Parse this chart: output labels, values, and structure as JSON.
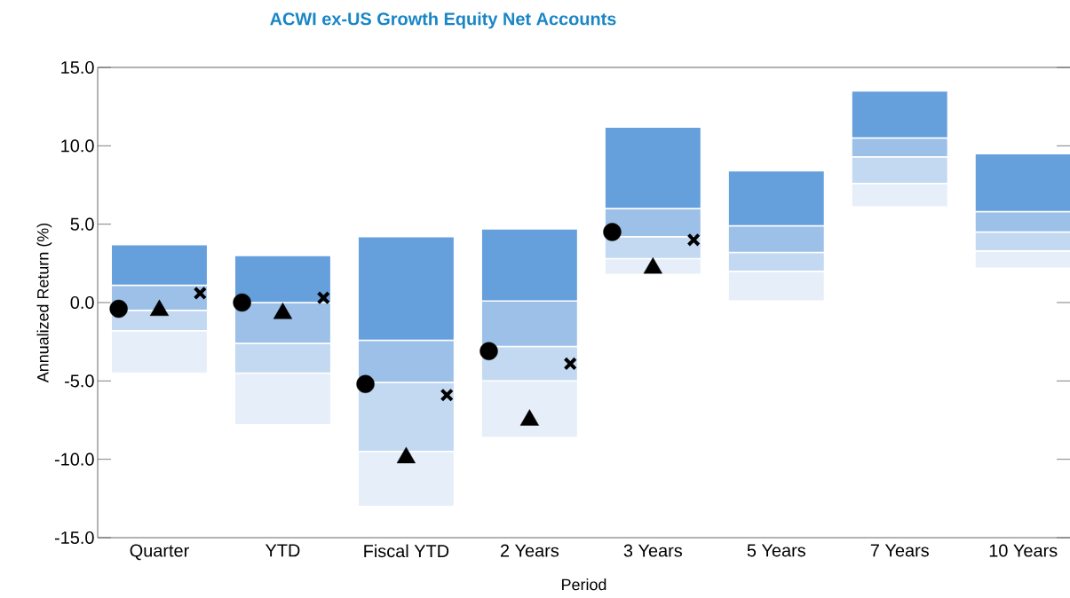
{
  "chart_data": {
    "type": "bar",
    "title": "ACWI ex-US Growth Equity Net Accounts",
    "xlabel": "Period",
    "ylabel": "Annualized Return (%)",
    "categories": [
      "Quarter",
      "YTD",
      "Fiscal YTD",
      "2 Years",
      "3 Years",
      "5 Years",
      "7 Years",
      "10 Years"
    ],
    "series": [
      {
        "color": "#e6eef9",
        "base": [
          -4.5,
          -7.8,
          -13.0,
          -8.6,
          1.8,
          0.1,
          6.1,
          2.2
        ],
        "values": [
          2.7,
          3.3,
          3.5,
          3.6,
          1.0,
          1.9,
          1.5,
          1.1
        ]
      },
      {
        "color": "#c3d8f1",
        "base": [
          -1.8,
          -4.5,
          -9.5,
          -5.0,
          2.8,
          2.0,
          7.6,
          3.3
        ],
        "values": [
          1.3,
          1.9,
          4.4,
          2.2,
          1.4,
          1.2,
          1.7,
          1.2
        ]
      },
      {
        "color": "#9dc0e9",
        "base": [
          -0.5,
          -2.6,
          -5.1,
          -2.8,
          4.2,
          3.2,
          9.3,
          4.5
        ],
        "values": [
          1.6,
          2.6,
          2.7,
          2.9,
          1.8,
          1.7,
          1.2,
          1.3
        ]
      },
      {
        "color": "#659fdc",
        "base": [
          1.1,
          0.0,
          -2.4,
          0.1,
          6.0,
          4.9,
          10.5,
          5.8
        ],
        "values": [
          2.6,
          3.0,
          6.6,
          4.6,
          5.2,
          3.5,
          3.0,
          3.7
        ]
      },
      {
        "type": "scatter",
        "marker": "circle",
        "color": "#000000",
        "x": [
          "Quarter",
          "YTD",
          "Fiscal YTD",
          "2 Years",
          "3 Years",
          "5 Years",
          "7 Years",
          "10 Years"
        ],
        "values": [
          -0.4,
          0.0,
          -5.2,
          -3.1,
          4.5,
          null,
          null,
          null
        ]
      },
      {
        "type": "scatter",
        "marker": "triangle",
        "color": "#000000",
        "x": [
          "Quarter",
          "YTD",
          "Fiscal YTD",
          "2 Years",
          "3 Years",
          "5 Years",
          "7 Years",
          "10 Years"
        ],
        "values": [
          -0.5,
          -0.7,
          -9.9,
          -7.5,
          2.2,
          null,
          null,
          null
        ]
      },
      {
        "type": "scatter",
        "marker": "cross",
        "color": "#000000",
        "x": [
          "Quarter",
          "YTD",
          "Fiscal YTD",
          "2 Years",
          "3 Years",
          "5 Years",
          "7 Years",
          "10 Years"
        ],
        "values": [
          0.6,
          0.3,
          -5.9,
          -3.9,
          4.0,
          null,
          null,
          null
        ]
      }
    ],
    "ylim": [
      -15,
      15
    ],
    "yticks": [
      {
        "value": -15,
        "label": "-15.0"
      },
      {
        "value": -10,
        "label": "-10.0"
      },
      {
        "value": -5,
        "label": "-5.0"
      },
      {
        "value": 0,
        "label": "0.0"
      },
      {
        "value": 5,
        "label": "5.0"
      },
      {
        "value": 10,
        "label": "10.0"
      },
      {
        "value": 15,
        "label": "15.0"
      }
    ],
    "grid": false
  }
}
